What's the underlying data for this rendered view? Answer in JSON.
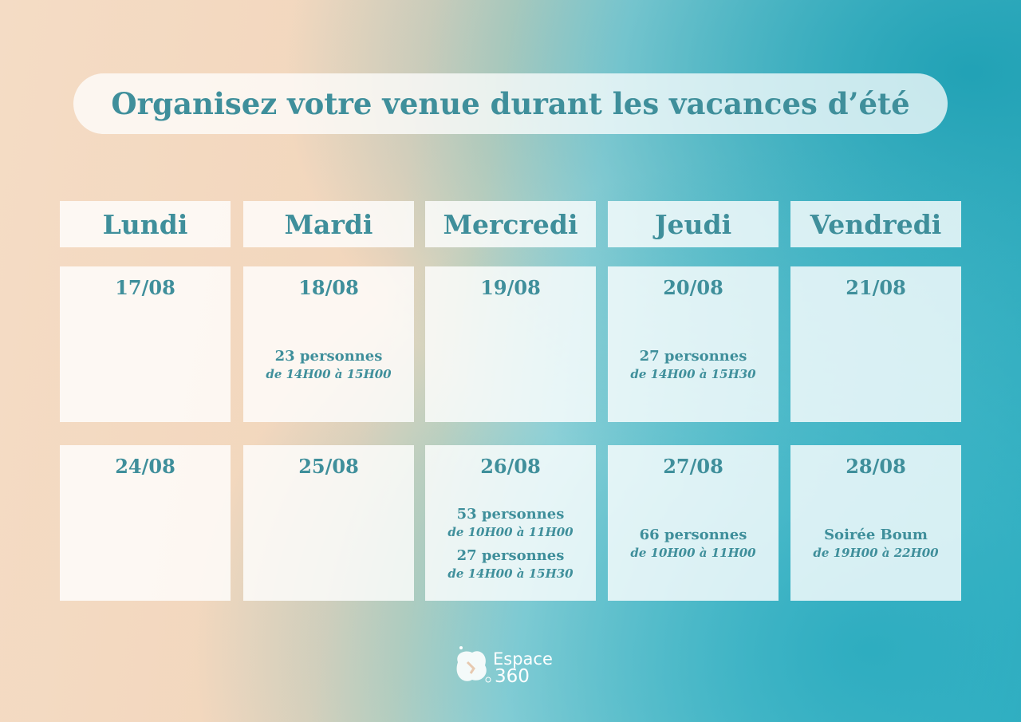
{
  "title": "Organisez votre venue durant les vacances d’été",
  "days": [
    "Lundi",
    "Mardi",
    "Mercredi",
    "Jeudi",
    "Vendredi"
  ],
  "weeks": [
    [
      {
        "date": "17/08",
        "events": []
      },
      {
        "date": "18/08",
        "events": [
          {
            "label": "23 personnes",
            "time": "de 14H00 à 15H00"
          }
        ]
      },
      {
        "date": "19/08",
        "events": []
      },
      {
        "date": "20/08",
        "events": [
          {
            "label": "27 personnes",
            "time": "de 14H00 à 15H30"
          }
        ]
      },
      {
        "date": "21/08",
        "events": []
      }
    ],
    [
      {
        "date": "24/08",
        "events": []
      },
      {
        "date": "25/08",
        "events": []
      },
      {
        "date": "26/08",
        "events": [
          {
            "label": "53 personnes",
            "time": "de 10H00 à 11H00"
          },
          {
            "label": "27 personnes",
            "time": "de 14H00 à 15H30"
          }
        ]
      },
      {
        "date": "27/08",
        "events": [
          {
            "label": "66 personnes",
            "time": "de 10H00 à 11H00"
          }
        ]
      },
      {
        "date": "28/08",
        "events": [
          {
            "label": "Soirée Boum",
            "time": "de 19H00 à 22H00"
          }
        ]
      }
    ]
  ],
  "logo": {
    "name": "Espace",
    "number": "360"
  }
}
